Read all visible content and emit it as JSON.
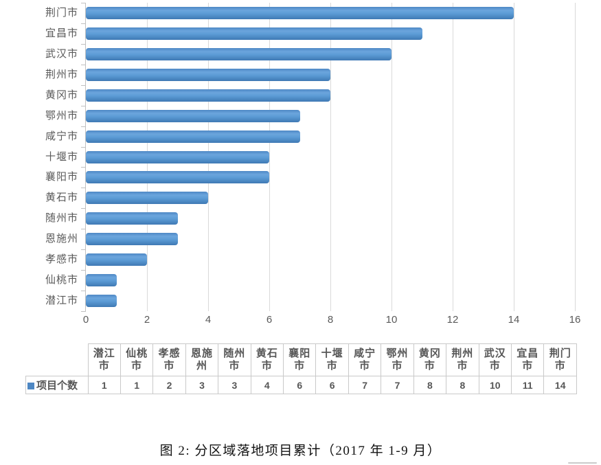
{
  "chart_data": {
    "type": "bar",
    "orientation": "horizontal",
    "title": "",
    "categories_top_to_bottom": [
      "荆门市",
      "宜昌市",
      "武汉市",
      "荆州市",
      "黄冈市",
      "鄂州市",
      "咸宁市",
      "十堰市",
      "襄阳市",
      "黄石市",
      "随州市",
      "恩施州",
      "孝感市",
      "仙桃市",
      "潜江市"
    ],
    "series": [
      {
        "name": "项目个数",
        "values_top_to_bottom": [
          14,
          11,
          10,
          8,
          8,
          7,
          7,
          6,
          6,
          4,
          3,
          3,
          2,
          1,
          1
        ]
      }
    ],
    "x_ticks": [
      0,
      2,
      4,
      6,
      8,
      10,
      12,
      14,
      16
    ],
    "xlim": [
      0,
      16
    ],
    "grid": true,
    "legend_position": "table-left",
    "bar_color": "#5B9BD5",
    "gridline_color": "#D9D9D9",
    "axis_text_color": "#595959"
  },
  "data_table": {
    "row_label": "项目个数",
    "legend_marker_color": "#4E87C3",
    "columns": [
      {
        "city": "潜江市",
        "value": "1"
      },
      {
        "city": "仙桃市",
        "value": "1"
      },
      {
        "city": "孝感市",
        "value": "2"
      },
      {
        "city": "恩施州",
        "value": "3"
      },
      {
        "city": "随州市",
        "value": "3"
      },
      {
        "city": "黄石市",
        "value": "4"
      },
      {
        "city": "襄阳市",
        "value": "6"
      },
      {
        "city": "十堰市",
        "value": "6"
      },
      {
        "city": "咸宁市",
        "value": "7"
      },
      {
        "city": "鄂州市",
        "value": "7"
      },
      {
        "city": "黄冈市",
        "value": "8"
      },
      {
        "city": "荆州市",
        "value": "8"
      },
      {
        "city": "武汉市",
        "value": "10"
      },
      {
        "city": "宜昌市",
        "value": "11"
      },
      {
        "city": "荆门市",
        "value": "14"
      }
    ]
  },
  "caption": "图 2: 分区域落地项目累计（2017 年 1-9 月）"
}
